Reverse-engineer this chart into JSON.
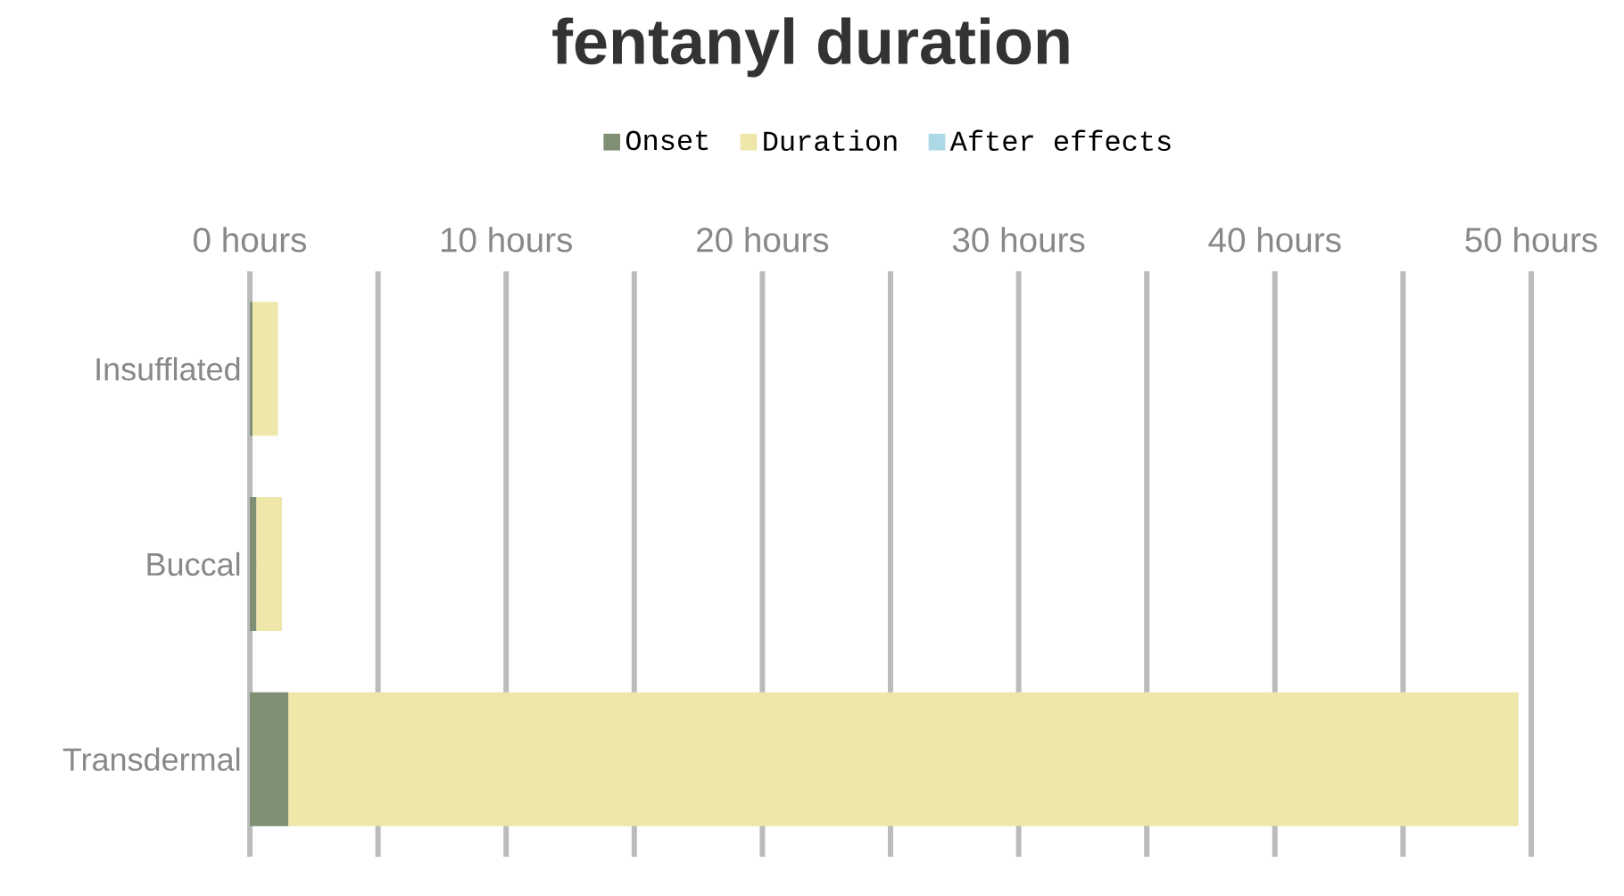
{
  "chart_data": {
    "type": "bar",
    "title": "fentanyl duration",
    "orientation": "horizontal",
    "stacked": true,
    "categories": [
      "Insufflated",
      "Buccal",
      "Transdermal"
    ],
    "series": [
      {
        "name": "Onset",
        "color": "#7f8f73",
        "values": [
          0.1,
          0.25,
          1.5
        ]
      },
      {
        "name": "Duration",
        "color": "#efe6aa",
        "values": [
          1,
          1,
          48
        ]
      },
      {
        "name": "After effects",
        "color": "#add8e6",
        "values": [
          0,
          0,
          0
        ]
      }
    ],
    "xlim": [
      0,
      50
    ],
    "xticks": [
      {
        "value": 0,
        "label": "0 hours"
      },
      {
        "value": 5,
        "label": null
      },
      {
        "value": 10,
        "label": "10 hours"
      },
      {
        "value": 15,
        "label": null
      },
      {
        "value": 20,
        "label": "20 hours"
      },
      {
        "value": 25,
        "label": null
      },
      {
        "value": 30,
        "label": "30 hours"
      },
      {
        "value": 35,
        "label": null
      },
      {
        "value": 40,
        "label": "40 hours"
      },
      {
        "value": 45,
        "label": null
      },
      {
        "value": 50,
        "label": "50 hours"
      }
    ],
    "grid": "x",
    "legend": "top"
  }
}
